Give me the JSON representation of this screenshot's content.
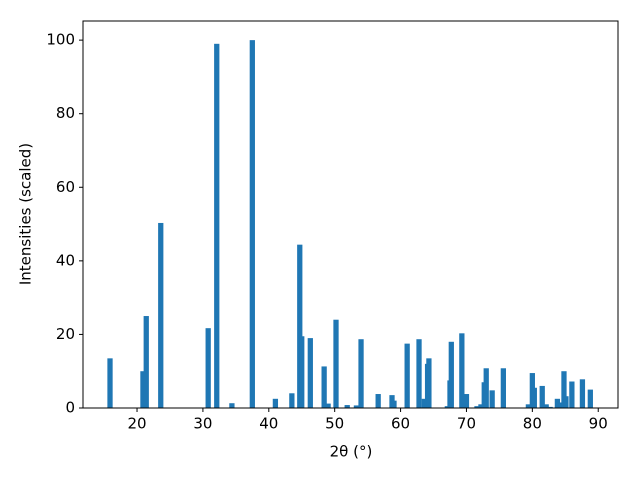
{
  "chart_data": {
    "type": "bar",
    "x_label": "2θ (°)",
    "y_label": "Intensities (scaled)",
    "x": [
      15.9,
      20.9,
      21.4,
      23.6,
      30.8,
      32.1,
      34.4,
      37.5,
      41.0,
      43.5,
      44.7,
      45.0,
      46.3,
      48.4,
      49.0,
      50.2,
      51.9,
      53.3,
      54.0,
      56.6,
      58.7,
      59.0,
      61.0,
      62.8,
      63.6,
      64.1,
      64.3,
      67.1,
      67.5,
      67.7,
      69.3,
      70.0,
      71.6,
      72.2,
      72.7,
      73.0,
      73.9,
      75.6,
      79.4,
      80.0,
      80.3,
      81.5,
      82.1,
      82.7,
      83.8,
      84.4,
      84.8,
      85.1,
      86.0,
      87.6,
      88.8
    ],
    "values": [
      13.5,
      10,
      25,
      50.3,
      21.7,
      99,
      1.3,
      100,
      2.5,
      4,
      44.4,
      19.5,
      19,
      11.3,
      1.2,
      24,
      0.8,
      0.7,
      18.7,
      3.8,
      3.5,
      2,
      17.5,
      18.7,
      2.5,
      12,
      13.5,
      0.5,
      7.5,
      18,
      20.3,
      3.8,
      0.5,
      1,
      7,
      10.8,
      4.8,
      10.8,
      1,
      9.5,
      5.5,
      6,
      1,
      0.3,
      2.5,
      1.5,
      10,
      3.2,
      7.2,
      7.8,
      5
    ],
    "bar_width": 0.8,
    "color": "#1f77b4",
    "xlim": [
      11.8,
      93.0
    ],
    "ylim": [
      0,
      105.2
    ],
    "xticks": [
      20,
      30,
      40,
      50,
      60,
      70,
      80,
      90
    ],
    "yticks": [
      0,
      20,
      40,
      60,
      80,
      100
    ]
  }
}
